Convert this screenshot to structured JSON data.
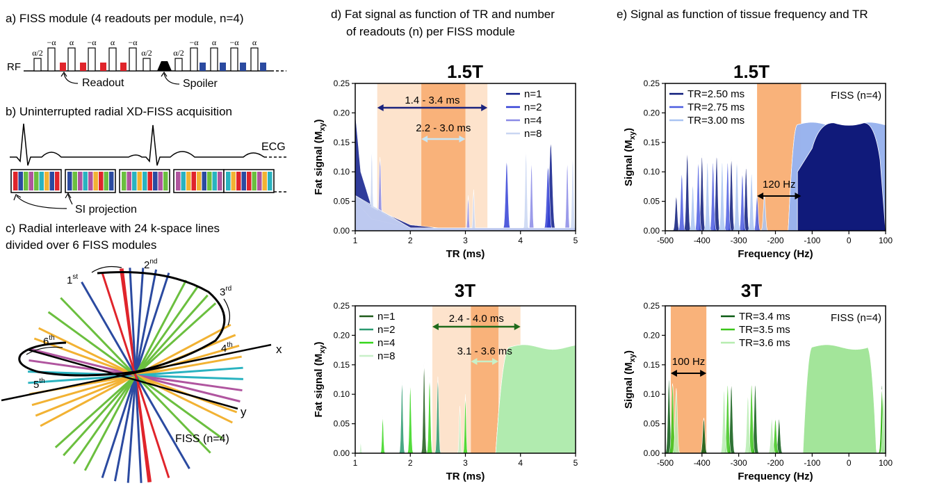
{
  "figure": {
    "panel_a": {
      "title": "a) FISS module (4 readouts per module, n=4)",
      "rf_label": "RF",
      "alpha_half": "α/2",
      "alpha": "α",
      "neg_alpha": "−α",
      "readout_label": "Readout",
      "spoiler_label": "Spoiler"
    },
    "panel_b": {
      "title": "b) Uninterrupted radial XD-FISS acquisition",
      "ecg_label": "ECG",
      "si_label": "SI projection"
    },
    "panel_c": {
      "title_line1": "c) Radial interleave with 24 k-space lines",
      "title_line2": "divided over 6 FISS modules",
      "ord1": "1",
      "ord1_sup": "st",
      "ord2": "2",
      "ord2_sup": "nd",
      "ord3": "3",
      "ord3_sup": "rd",
      "ord4": "4",
      "ord4_sup": "th",
      "ord5": "5",
      "ord5_sup": "th",
      "ord6": "6",
      "ord6_sup": "th",
      "x_label": "x",
      "y_label": "y",
      "fiss_label": "FISS (n=4)"
    },
    "panel_d": {
      "title_line1": "d) Fat signal as function of TR and number",
      "title_line2": "of readouts (n) per FISS module"
    },
    "panel_e": {
      "title": "e) Signal as function of tissue frequency and TR"
    },
    "field_15": "1.5T",
    "field_3": "3T",
    "ylabel_fat": "Fat signal (M",
    "ylabel_sig": "Signal (M",
    "ylabel_sub": "xy",
    "ylabel_close": ")",
    "xlabel_tr": "TR (ms)",
    "xlabel_freq": "Frequency (Hz)",
    "fiss_n4": "FISS (n=4)"
  },
  "colors": {
    "red": "#e0242b",
    "blue": "#2b4aa0",
    "green": "#6bbf3f",
    "magenta": "#b0559f",
    "cyan": "#2ab3c0",
    "orange": "#f2b233",
    "band_light": "#fde3cc",
    "band_dark": "#f9b27a",
    "navy": "#101a7a",
    "green_dark": "#0a5a12"
  },
  "chart_data": [
    {
      "id": "d_15T",
      "type": "area",
      "title": "1.5T",
      "xlabel": "TR (ms)",
      "ylabel": "Fat signal (Mxy)",
      "xlim": [
        1,
        5
      ],
      "ylim": [
        0,
        0.25
      ],
      "xticks": [
        1,
        2,
        3,
        4,
        5
      ],
      "yticks": [
        0.0,
        0.05,
        0.1,
        0.15,
        0.2,
        0.25
      ],
      "bands": [
        {
          "range": [
            1.4,
            3.4
          ],
          "label": "1.4 - 3.4 ms",
          "shade": "light"
        },
        {
          "range": [
            2.2,
            3.0
          ],
          "label": "2.2 - 3.0 ms",
          "shade": "dark"
        }
      ],
      "series": [
        {
          "name": "n=1",
          "color": "#0c1a8a",
          "baseline": [
            [
              1,
              0.2
            ],
            [
              1.1,
              0.1
            ],
            [
              1.3,
              0.04
            ],
            [
              2,
              0.01
            ],
            [
              3,
              0.0
            ],
            [
              3.5,
              0.0
            ],
            [
              5,
              0.005
            ]
          ],
          "peaks": [
            [
              4.55,
              0.15,
              0.09
            ]
          ]
        },
        {
          "name": "n=2",
          "color": "#3340d6",
          "baseline": [
            [
              1,
              0.05
            ],
            [
              1.3,
              0.02
            ],
            [
              2,
              0.005
            ],
            [
              5,
              0.005
            ]
          ],
          "peaks": [
            [
              3.75,
              0.12,
              0.07
            ],
            [
              4.5,
              0.11,
              0.08
            ]
          ]
        },
        {
          "name": "n=4",
          "color": "#8a8ae6",
          "baseline": [
            [
              1,
              0.06
            ],
            [
              1.3,
              0.04
            ],
            [
              2,
              0.005
            ],
            [
              5,
              0.005
            ]
          ],
          "peaks": [
            [
              1.45,
              0.125,
              0.06
            ],
            [
              3.05,
              0.06,
              0.04
            ],
            [
              4.2,
              0.12,
              0.05
            ],
            [
              4.85,
              0.12,
              0.05
            ]
          ]
        },
        {
          "name": "n=8",
          "color": "#c9d6f2",
          "baseline": [
            [
              1,
              0.06
            ],
            [
              2,
              0.005
            ],
            [
              5,
              0.005
            ]
          ],
          "peaks": [
            [
              1.3,
              0.14,
              0.05
            ],
            [
              3.15,
              0.07,
              0.04
            ],
            [
              4.1,
              0.14,
              0.05
            ],
            [
              4.95,
              0.13,
              0.05
            ]
          ]
        }
      ]
    },
    {
      "id": "e_15T",
      "type": "area",
      "title": "1.5T",
      "xlabel": "Frequency (Hz)",
      "ylabel": "Signal (Mxy)",
      "xlim": [
        -500,
        100
      ],
      "ylim": [
        0,
        0.25
      ],
      "xticks": [
        -500,
        -400,
        -300,
        -200,
        -100,
        0,
        100
      ],
      "yticks": [
        0.0,
        0.05,
        0.1,
        0.15,
        0.2,
        0.25
      ],
      "bands": [
        {
          "range": [
            -250,
            -130
          ],
          "label": "120 Hz",
          "shade": "dark"
        }
      ],
      "annotation": "FISS (n=4)",
      "series": [
        {
          "name": "TR=2.50 ms",
          "color": "#0c1a7a",
          "peaks": [
            [
              -470,
              0.06,
              9
            ],
            [
              -440,
              0.135,
              9
            ],
            [
              -400,
              0.13,
              9
            ],
            [
              -360,
              0.13,
              9
            ],
            [
              -320,
              0.125,
              9
            ],
            [
              -280,
              0.11,
              9
            ]
          ]
        },
        {
          "name": "TR=2.75 ms",
          "color": "#4b5ce0",
          "peaks": [
            [
              -455,
              0.1,
              9
            ],
            [
              -410,
              0.12,
              9
            ],
            [
              -370,
              0.12,
              9
            ],
            [
              -330,
              0.12,
              9
            ],
            [
              -290,
              0.1,
              9
            ],
            [
              -250,
              0.06,
              9
            ]
          ]
        },
        {
          "name": "TR=3.00 ms",
          "color": "#a9c4f2",
          "peaks": [
            [
              -425,
              0.08,
              9
            ],
            [
              -385,
              0.12,
              9
            ],
            [
              -345,
              0.12,
              9
            ],
            [
              -305,
              0.12,
              9
            ],
            [
              -265,
              0.1,
              9
            ],
            [
              -230,
              0.06,
              9
            ]
          ]
        }
      ],
      "plateau": {
        "start": -140,
        "end": 100,
        "level": 0.18
      }
    },
    {
      "id": "d_3T",
      "type": "area",
      "title": "3T",
      "xlabel": "TR (ms)",
      "ylabel": "Fat signal (Mxy)",
      "xlim": [
        1,
        5
      ],
      "ylim": [
        0,
        0.25
      ],
      "xticks": [
        1,
        2,
        3,
        4,
        5
      ],
      "yticks": [
        0.0,
        0.05,
        0.1,
        0.15,
        0.2,
        0.25
      ],
      "bands": [
        {
          "range": [
            2.4,
            4.0
          ],
          "label": "2.4 - 4.0 ms",
          "shade": "light"
        },
        {
          "range": [
            3.1,
            3.6
          ],
          "label": "3.1 - 3.6 ms",
          "shade": "dark"
        }
      ],
      "series": [
        {
          "name": "n=1",
          "color": "#1f5a1a",
          "peaks": [
            [
              2.25,
              0.155,
              0.05
            ]
          ]
        },
        {
          "name": "n=2",
          "color": "#2a9a70",
          "peaks": [
            [
              1.85,
              0.125,
              0.05
            ],
            [
              2.5,
              0.13,
              0.05
            ]
          ]
        },
        {
          "name": "n=4",
          "color": "#35d61a",
          "peaks": [
            [
              1.5,
              0.065,
              0.04
            ],
            [
              2.0,
              0.12,
              0.05
            ],
            [
              2.35,
              0.13,
              0.05
            ],
            [
              3.0,
              0.1,
              0.04
            ]
          ]
        },
        {
          "name": "n=8",
          "color": "#c8f0c8",
          "peaks": [
            [
              1.1,
              0.02,
              0.03
            ],
            [
              2.9,
              0.08,
              0.04
            ]
          ]
        }
      ],
      "plateau": {
        "start": 3.8,
        "end": 5,
        "level": 0.18
      }
    },
    {
      "id": "e_3T",
      "type": "area",
      "title": "3T",
      "xlabel": "Frequency (Hz)",
      "ylabel": "Signal (Mxy)",
      "xlim": [
        -500,
        100
      ],
      "ylim": [
        0,
        0.25
      ],
      "xticks": [
        -500,
        -400,
        -300,
        -200,
        -100,
        0,
        100
      ],
      "yticks": [
        0.0,
        0.05,
        0.1,
        0.15,
        0.2,
        0.25
      ],
      "bands": [
        {
          "range": [
            -485,
            -388
          ],
          "label": "100 Hz",
          "shade": "dark"
        }
      ],
      "annotation": "FISS (n=4)",
      "series": [
        {
          "name": "TR=3.4 ms",
          "color": "#0a5a12",
          "peaks": [
            [
              -490,
              0.13,
              9
            ],
            [
              -395,
              0.06,
              9
            ],
            [
              -320,
              0.12,
              9
            ],
            [
              -255,
              0.12,
              9
            ],
            [
              -190,
              0.06,
              9
            ],
            [
              90,
              0.12,
              9
            ]
          ]
        },
        {
          "name": "TR=3.5 ms",
          "color": "#3cc51a",
          "peaks": [
            [
              -480,
              0.12,
              9
            ],
            [
              -330,
              0.12,
              9
            ],
            [
              -265,
              0.12,
              9
            ],
            [
              -200,
              0.06,
              9
            ],
            [
              90,
              0.11,
              9
            ]
          ]
        },
        {
          "name": "TR=3.6 ms",
          "color": "#b6ecb0",
          "peaks": [
            [
              -470,
              0.11,
              9
            ],
            [
              -340,
              0.11,
              9
            ],
            [
              -275,
              0.1,
              9
            ],
            [
              -210,
              0.06,
              9
            ],
            [
              95,
              0.1,
              9
            ]
          ]
        }
      ],
      "plateau": {
        "start": -100,
        "end": 50,
        "level": 0.18
      }
    }
  ]
}
